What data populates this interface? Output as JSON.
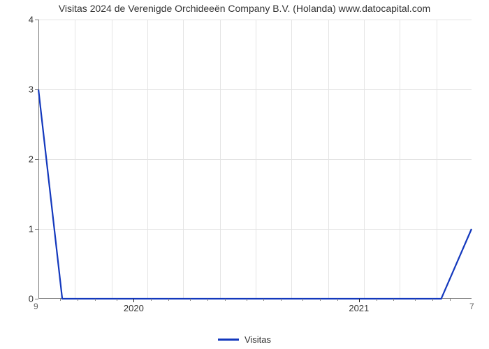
{
  "chart": {
    "type": "line",
    "title": "Visitas 2024 de Verenigde Orchideeën Company B.V. (Holanda) www.datocapital.com",
    "title_fontsize": 14,
    "background_color": "#ffffff",
    "grid_color": "#e4e4e4",
    "axis_color": "#7c7c7c",
    "tick_color": "#222222",
    "text_color": "#333333",
    "line_color": "#1338bd",
    "line_width": 2.2,
    "xlim": [
      0,
      1
    ],
    "ylim": [
      0,
      4
    ],
    "ytick_step": 1,
    "yticks": [
      0,
      1,
      2,
      3,
      4
    ],
    "xticks_major": [
      {
        "pos": 0.22,
        "label": "2020"
      },
      {
        "pos": 0.74,
        "label": "2021"
      }
    ],
    "xticks_minor": [
      0.05,
      0.09,
      0.13,
      0.18,
      0.26,
      0.3,
      0.35,
      0.39,
      0.43,
      0.48,
      0.52,
      0.56,
      0.61,
      0.65,
      0.69,
      0.78,
      0.82,
      0.87,
      0.91,
      0.95
    ],
    "vgrid_positions": [
      0.083,
      0.167,
      0.25,
      0.333,
      0.417,
      0.5,
      0.583,
      0.667,
      0.75,
      0.833,
      0.917
    ],
    "corner_left": "9",
    "corner_right": "7",
    "series": {
      "label": "Visitas",
      "data": [
        {
          "x": 0.0,
          "y": 3.0
        },
        {
          "x": 0.055,
          "y": 0.0
        },
        {
          "x": 0.93,
          "y": 0.0
        },
        {
          "x": 1.0,
          "y": 1.0
        }
      ]
    },
    "legend_label": "Visitas",
    "legend_fontsize": 13
  }
}
